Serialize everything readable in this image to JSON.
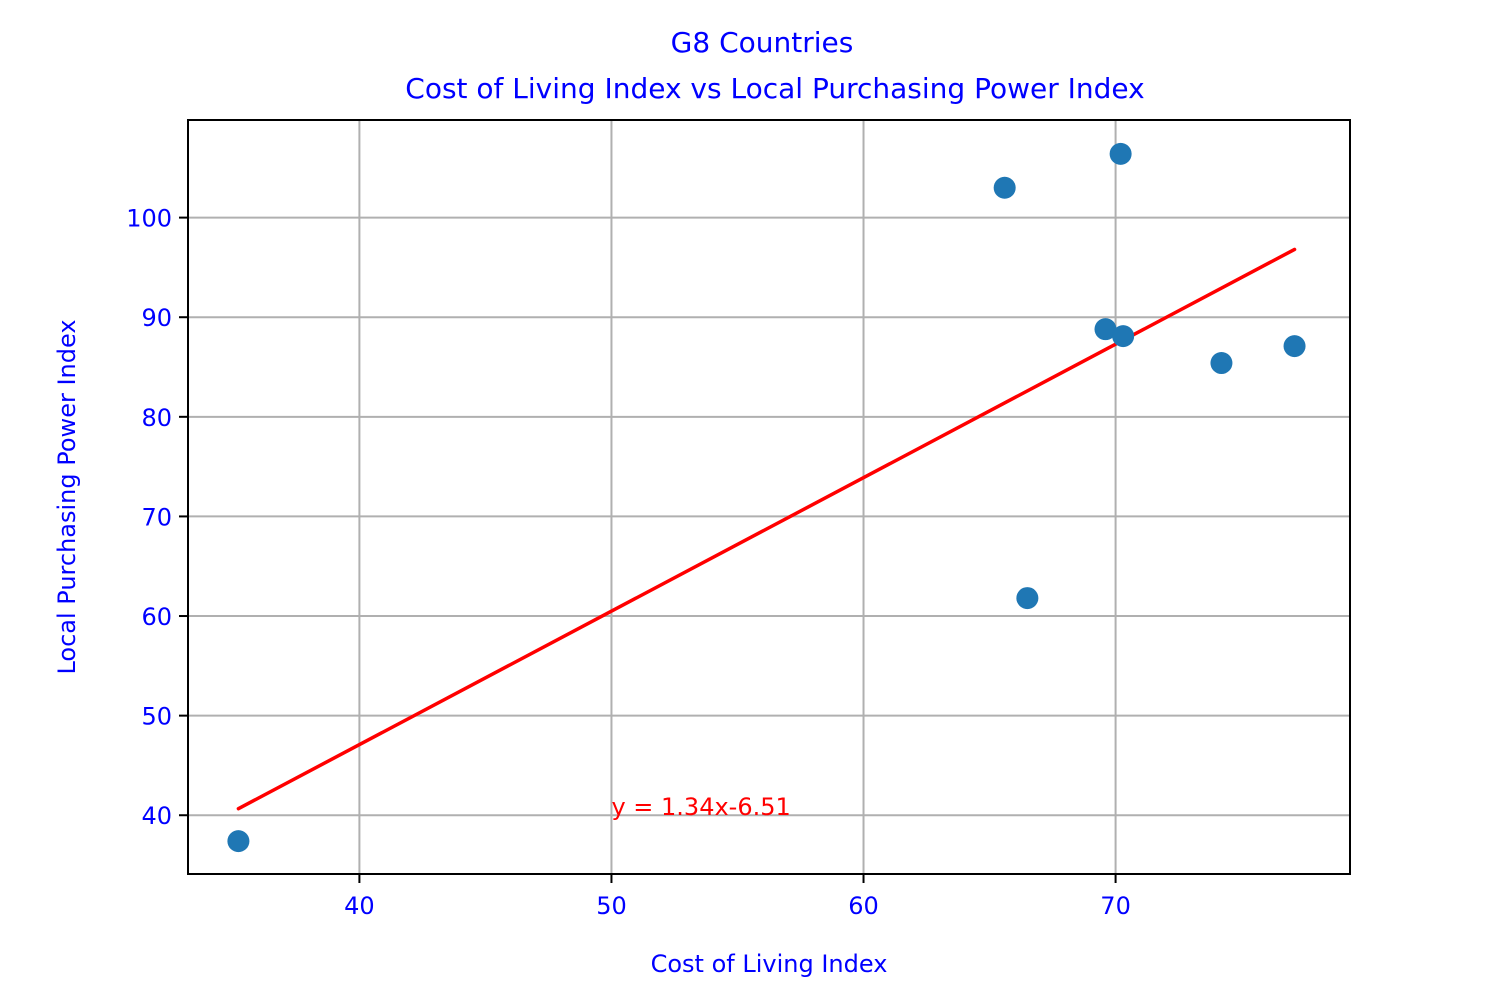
{
  "chart_data": {
    "type": "scatter",
    "title_line1": "G8 Countries",
    "title_line2": "Cost of Living Index vs Local Purchasing Power Index",
    "xlabel": "Cost of Living Index",
    "ylabel": "Local Purchasing Power Index",
    "xlim": [
      33.2,
      79.3
    ],
    "ylim": [
      34.1,
      109.8
    ],
    "xticks": [
      40,
      50,
      60,
      70
    ],
    "yticks": [
      40,
      50,
      60,
      70,
      80,
      90,
      100
    ],
    "grid": true,
    "points": [
      {
        "x": 35.2,
        "y": 37.4
      },
      {
        "x": 65.6,
        "y": 103.0
      },
      {
        "x": 66.5,
        "y": 61.8
      },
      {
        "x": 69.6,
        "y": 88.8
      },
      {
        "x": 70.2,
        "y": 106.4
      },
      {
        "x": 70.3,
        "y": 88.1
      },
      {
        "x": 74.2,
        "y": 85.4
      },
      {
        "x": 77.1,
        "y": 87.1
      }
    ],
    "regression": {
      "slope": 1.34,
      "intercept": -6.51,
      "x_start": 35.2,
      "x_end": 77.1,
      "color": "#ff0000"
    },
    "annotation": {
      "text": "y = 1.34x-6.51",
      "x": 50,
      "y": 40
    },
    "colors": {
      "points": "#1f77b4",
      "labels": "#0000ff",
      "grid": "#b0b0b0"
    }
  }
}
